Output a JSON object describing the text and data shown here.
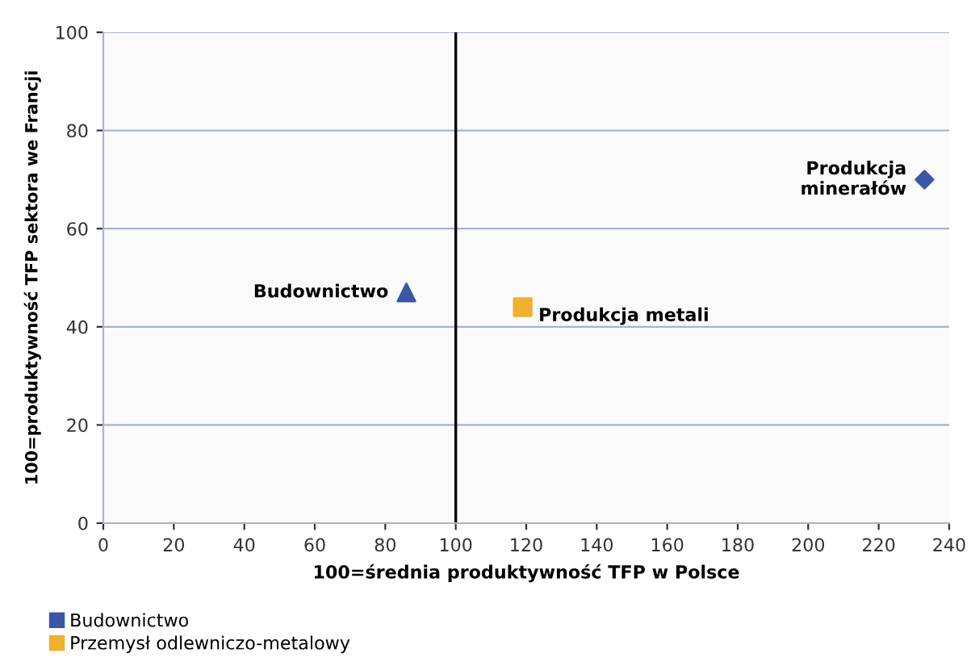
{
  "chart_data": {
    "type": "scatter",
    "xlabel": "100=średnia produktywność TFP w Polsce",
    "ylabel": "100=produktywność TFP sektora we Francji",
    "series": [
      {
        "name": "Budownictwo",
        "color": "#3a56a8",
        "marker": "triangle",
        "x": [
          86
        ],
        "values": [
          47
        ]
      },
      {
        "name": "Przemysł odlewniczo-metalowy",
        "color": "#f0b030",
        "marker": "square",
        "x": [
          119
        ],
        "values": [
          44
        ]
      },
      {
        "color": "#3a56a8",
        "marker": "diamond",
        "x": [
          233
        ],
        "values": [
          70
        ]
      }
    ],
    "annotations": [
      {
        "text": "Budownictwo",
        "x": 86,
        "y": 47
      },
      {
        "text": "Produkcja metali",
        "x": 119,
        "y": 44
      },
      {
        "text": "Produkcja\nminerałów",
        "x": 233,
        "y": 70
      }
    ],
    "ref_lines": [
      {
        "axis": "x",
        "value": 100,
        "color": "#000000"
      }
    ],
    "xlim": [
      0,
      240
    ],
    "xticks": [
      0,
      20,
      40,
      60,
      80,
      100,
      120,
      140,
      160,
      180,
      200,
      220,
      240
    ],
    "ylim": [
      0,
      100
    ],
    "yticks": [
      0,
      20,
      40,
      60,
      80,
      100
    ],
    "grid": "y",
    "legend": "bottom left"
  }
}
